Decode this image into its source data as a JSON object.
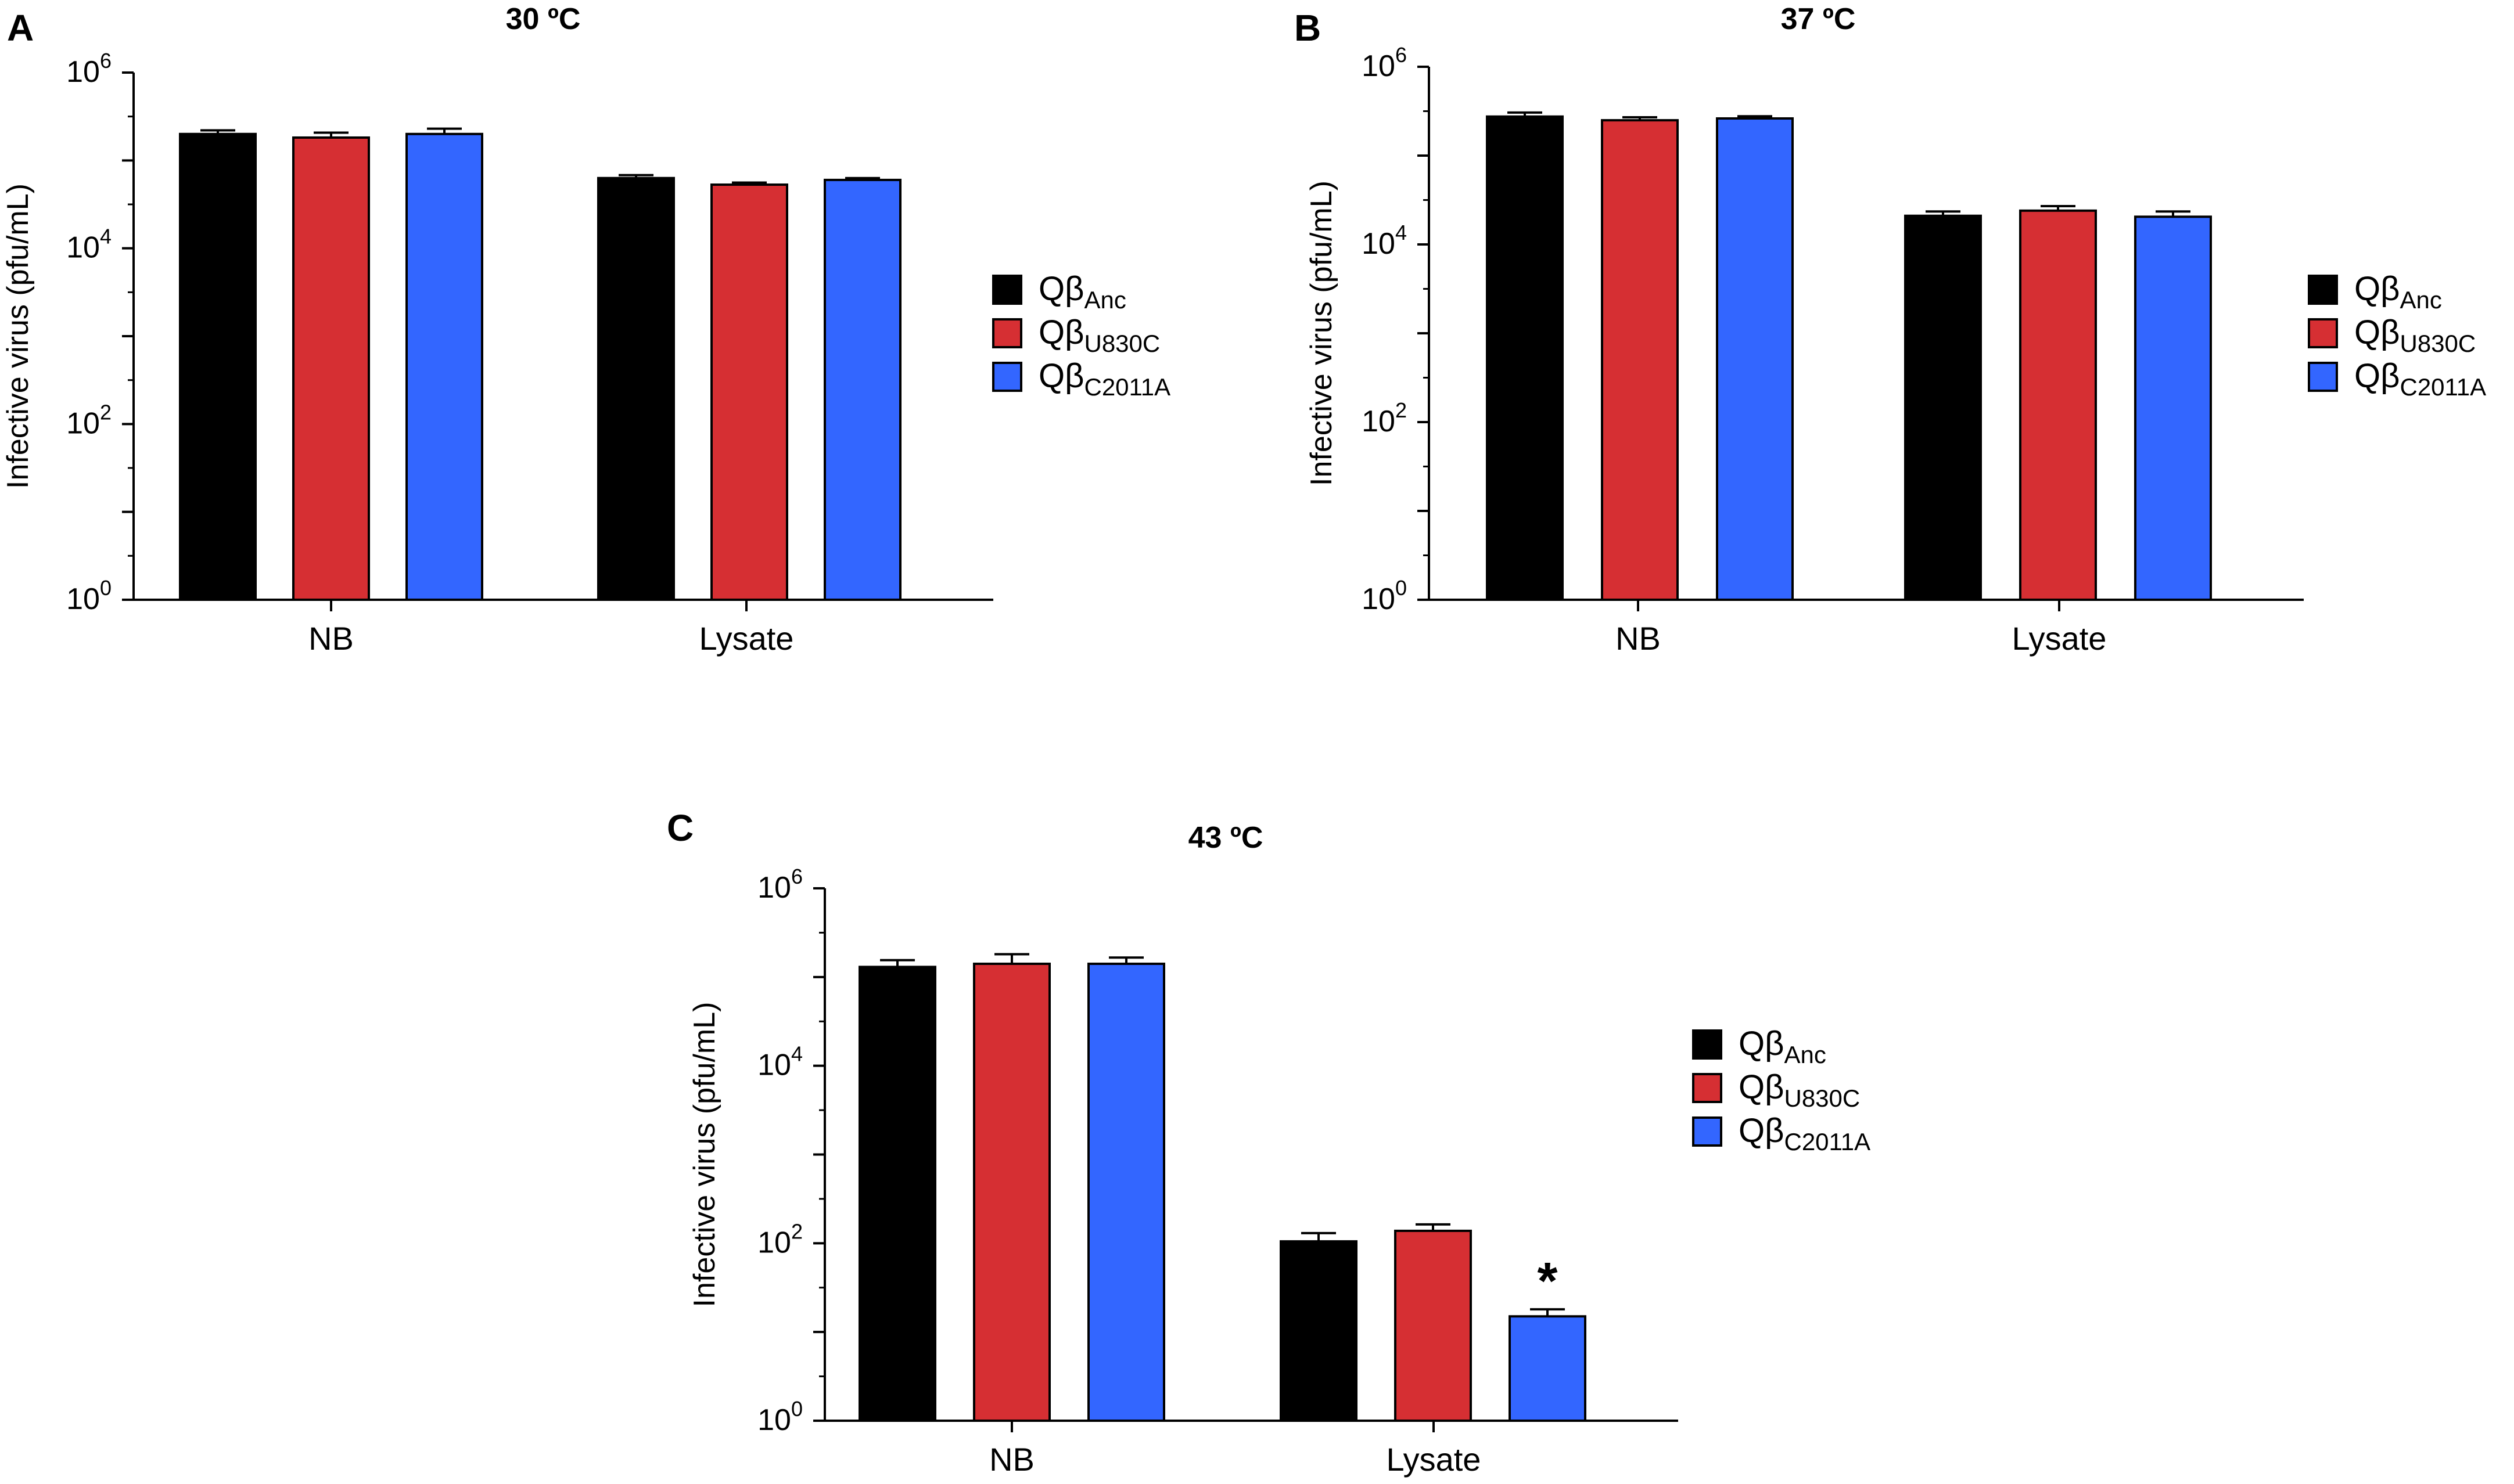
{
  "chart_data": [
    {
      "type": "bar",
      "panel": "A",
      "title": "30 ºC",
      "xlabel": "",
      "ylabel": "Infective virus (pfu/mL)",
      "yscale": "log10",
      "ylim": [
        1,
        1000000
      ],
      "yticks": [
        {
          "base": "10",
          "exp": "0"
        },
        {
          "base": "10",
          "exp": "2"
        },
        {
          "base": "10",
          "exp": "4"
        },
        {
          "base": "10",
          "exp": "6"
        }
      ],
      "categories": [
        "NB",
        "Lysate"
      ],
      "series": [
        {
          "name": "Anc",
          "color": "#000000",
          "values": [
            200000,
            63000
          ],
          "errors": [
            20000,
            5000
          ]
        },
        {
          "name": "U830C",
          "color": "#d62f33",
          "values": [
            182000,
            53000
          ],
          "errors": [
            25000,
            3000
          ]
        },
        {
          "name": "C2011A",
          "color": "#3366ff",
          "values": [
            200000,
            60000
          ],
          "errors": [
            30000,
            3000
          ]
        }
      ],
      "legend": {
        "placement": "right",
        "prefix": "Qβ"
      },
      "annotations": []
    },
    {
      "type": "bar",
      "panel": "B",
      "title": "37 ºC",
      "xlabel": "",
      "ylabel": "Infective virus (pfu/mL)",
      "yscale": "log10",
      "ylim": [
        1,
        1000000
      ],
      "yticks": [
        {
          "base": "10",
          "exp": "0"
        },
        {
          "base": "10",
          "exp": "2"
        },
        {
          "base": "10",
          "exp": "4"
        },
        {
          "base": "10",
          "exp": "6"
        }
      ],
      "categories": [
        "NB",
        "Lysate"
      ],
      "series": [
        {
          "name": "Anc",
          "color": "#000000",
          "values": [
            275000,
            21000
          ],
          "errors": [
            30000,
            2500
          ]
        },
        {
          "name": "U830C",
          "color": "#d62f33",
          "values": [
            250000,
            24000
          ],
          "errors": [
            20000,
            3000
          ]
        },
        {
          "name": "C2011A",
          "color": "#3366ff",
          "values": [
            262000,
            20500
          ],
          "errors": [
            15000,
            3000
          ]
        }
      ],
      "legend": {
        "placement": "right",
        "prefix": "Qβ"
      },
      "annotations": []
    },
    {
      "type": "bar",
      "panel": "C",
      "title": "43 ºC",
      "xlabel": "",
      "ylabel": "Infective virus (pfu/mL)",
      "yscale": "log10",
      "ylim": [
        1,
        1000000
      ],
      "yticks": [
        {
          "base": "10",
          "exp": "0"
        },
        {
          "base": "10",
          "exp": "2"
        },
        {
          "base": "10",
          "exp": "4"
        },
        {
          "base": "10",
          "exp": "6"
        }
      ],
      "categories": [
        "NB",
        "Lysate"
      ],
      "series": [
        {
          "name": "Anc",
          "color": "#000000",
          "values": [
            130000,
            105
          ],
          "errors": [
            25000,
            25
          ]
        },
        {
          "name": "U830C",
          "color": "#d62f33",
          "values": [
            141000,
            138
          ],
          "errors": [
            40000,
            25
          ]
        },
        {
          "name": "C2011A",
          "color": "#3366ff",
          "values": [
            141000,
            15
          ],
          "errors": [
            25000,
            3
          ]
        }
      ],
      "legend": {
        "placement": "right",
        "prefix": "Qβ"
      },
      "annotations": [
        {
          "text": "*",
          "category": "Lysate",
          "series": "C2011A"
        }
      ]
    }
  ]
}
